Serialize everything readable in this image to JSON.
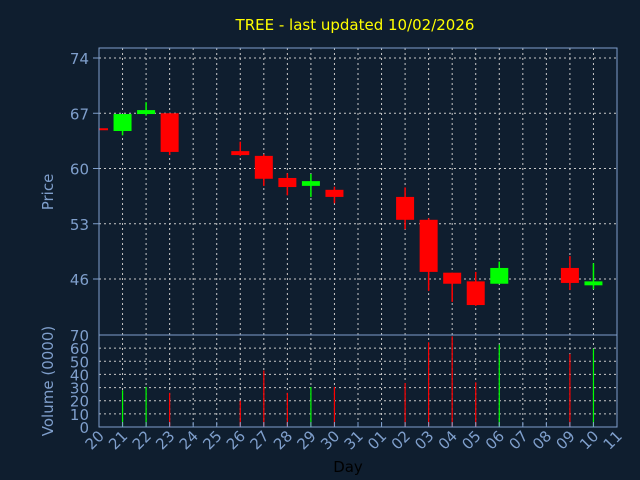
{
  "chart_data": [
    {
      "type": "candlestick",
      "title": "TREE - last updated 10/02/2026",
      "ylabel": "Price",
      "ylim": [
        38.5,
        75.3
      ],
      "yticks": [
        "74",
        "67",
        "60",
        "53",
        "46"
      ],
      "grid": true,
      "colors": {
        "up": "#00ff00",
        "down": "#ff0000"
      },
      "x_ticks": [
        "20",
        "21",
        "22",
        "23",
        "24",
        "25",
        "26",
        "27",
        "28",
        "29",
        "30",
        "31",
        "01",
        "02",
        "03",
        "04",
        "05",
        "06",
        "07",
        "08",
        "09",
        "10",
        "11"
      ],
      "candles": [
        {
          "day": "20",
          "open": 65.1,
          "high": 65.1,
          "low": 64.9,
          "close": 64.9
        },
        {
          "day": "21",
          "open": 64.75,
          "high": 66.9,
          "low": 64.2,
          "close": 66.9
        },
        {
          "day": "22",
          "open": 66.9,
          "high": 68.4,
          "low": 66.7,
          "close": 67.4
        },
        {
          "day": "23",
          "open": 67.0,
          "high": 67.0,
          "low": 61.7,
          "close": 62.1
        },
        {
          "day": "26",
          "open": 62.2,
          "high": 63.4,
          "low": 61.6,
          "close": 61.7
        },
        {
          "day": "27",
          "open": 61.6,
          "high": 61.8,
          "low": 57.8,
          "close": 58.7
        },
        {
          "day": "28",
          "open": 58.8,
          "high": 59.4,
          "low": 56.6,
          "close": 57.65
        },
        {
          "day": "29",
          "open": 57.8,
          "high": 59.3,
          "low": 56.4,
          "close": 58.4
        },
        {
          "day": "30",
          "open": 57.3,
          "high": 57.7,
          "low": 55.6,
          "close": 56.4
        },
        {
          "day": "02",
          "open": 56.4,
          "high": 57.6,
          "low": 52.3,
          "close": 53.5
        },
        {
          "day": "03",
          "open": 53.5,
          "high": 53.7,
          "low": 44.5,
          "close": 46.9
        },
        {
          "day": "04",
          "open": 46.8,
          "high": 46.8,
          "low": 43.1,
          "close": 45.4
        },
        {
          "day": "05",
          "open": 45.7,
          "high": 46.9,
          "low": 42.6,
          "close": 42.7
        },
        {
          "day": "06",
          "open": 45.4,
          "high": 48.2,
          "low": 45.4,
          "close": 47.4
        },
        {
          "day": "09",
          "open": 47.4,
          "high": 48.9,
          "low": 44.6,
          "close": 45.5
        },
        {
          "day": "10",
          "open": 45.2,
          "high": 48.0,
          "low": 44.7,
          "close": 45.7
        }
      ]
    },
    {
      "type": "bar",
      "ylabel": "Volume (0000)",
      "xlabel": "Day",
      "ylim": [
        0,
        70
      ],
      "yticks": [
        "0",
        "10",
        "20",
        "30",
        "40",
        "50",
        "60",
        "70"
      ],
      "grid": true,
      "bars": [
        {
          "day": "21",
          "value": 28,
          "dir": "up"
        },
        {
          "day": "22",
          "value": 30.5,
          "dir": "up"
        },
        {
          "day": "23",
          "value": 26,
          "dir": "down"
        },
        {
          "day": "26",
          "value": 20,
          "dir": "down"
        },
        {
          "day": "27",
          "value": 43,
          "dir": "down"
        },
        {
          "day": "28",
          "value": 26,
          "dir": "down"
        },
        {
          "day": "29",
          "value": 30.5,
          "dir": "up"
        },
        {
          "day": "30",
          "value": 30.5,
          "dir": "down"
        },
        {
          "day": "02",
          "value": 33.5,
          "dir": "down"
        },
        {
          "day": "03",
          "value": 64.5,
          "dir": "down"
        },
        {
          "day": "04",
          "value": 69,
          "dir": "down"
        },
        {
          "day": "05",
          "value": 34,
          "dir": "down"
        },
        {
          "day": "06",
          "value": 62.7,
          "dir": "up"
        },
        {
          "day": "09",
          "value": 55.6,
          "dir": "down"
        },
        {
          "day": "10",
          "value": 59.6,
          "dir": "up"
        }
      ]
    }
  ]
}
